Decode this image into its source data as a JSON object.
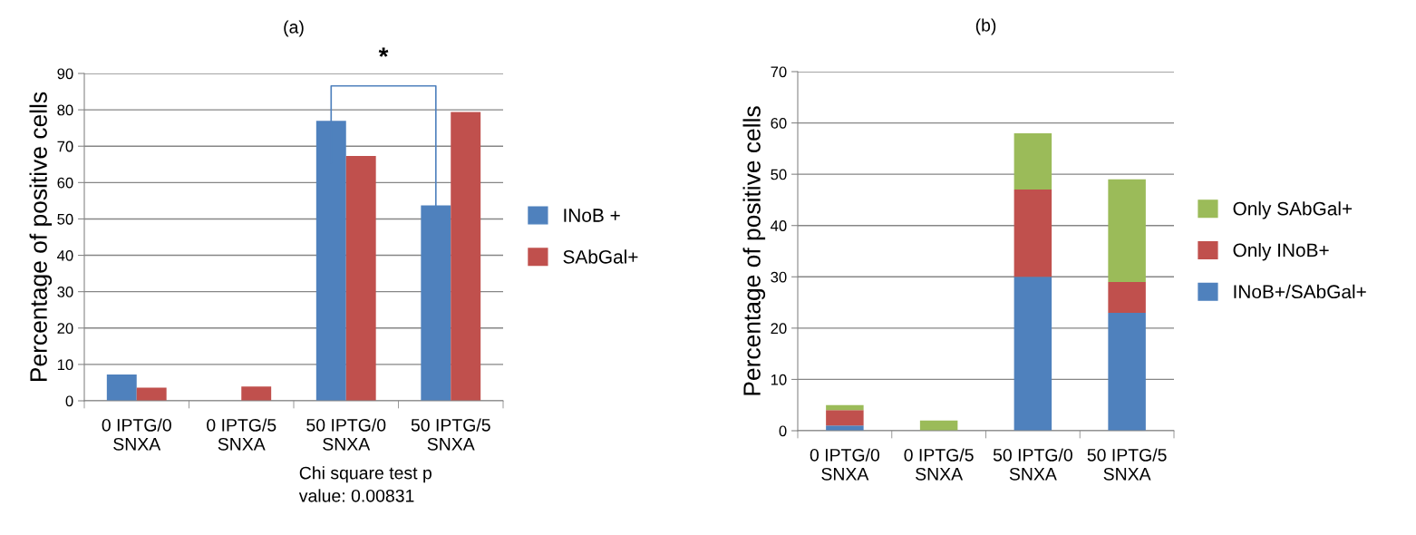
{
  "chart_data": [
    {
      "type": "bar",
      "title": "(a)",
      "ylabel": "Percentage of positive cells",
      "categories": [
        "0 IPTG/0\nSNXA",
        "0 IPTG/5\nSNXA",
        "50 IPTG/0\nSNXA",
        "50 IPTG/5\nSNXA"
      ],
      "series": [
        {
          "name": "INoB +",
          "color": "#4f81bd",
          "values": [
            7.2,
            0,
            77,
            53.7
          ]
        },
        {
          "name": "SAbGal+",
          "color": "#c0504d",
          "values": [
            3.6,
            3.9,
            67.3,
            79.4
          ]
        }
      ],
      "ylim": [
        0,
        90
      ],
      "yticks": [
        0,
        10,
        20,
        30,
        40,
        50,
        60,
        70,
        80,
        90
      ],
      "grid": "y",
      "legend": "right",
      "annotations": [
        "*",
        "Chi square test p\nvalue: 0.00831"
      ]
    },
    {
      "type": "bar",
      "title": "(b)",
      "ylabel": "Percentage of positive cells",
      "stacked": true,
      "categories": [
        "0 IPTG/0\nSNXA",
        "0 IPTG/5\nSNXA",
        "50 IPTG/0\nSNXA",
        "50 IPTG/5\nSNXA"
      ],
      "series": [
        {
          "name": "INoB+/SAbGal+",
          "color": "#4f81bd",
          "values": [
            1,
            0,
            30,
            23
          ]
        },
        {
          "name": "Only INoB+",
          "color": "#c0504d",
          "values": [
            3,
            0,
            17,
            6
          ]
        },
        {
          "name": "Only SAbGal+",
          "color": "#9bbb59",
          "values": [
            1,
            2,
            11,
            20
          ]
        }
      ],
      "ylim": [
        0,
        70
      ],
      "yticks": [
        0,
        10,
        20,
        30,
        40,
        50,
        60,
        70
      ],
      "grid": "y",
      "legend": "right"
    }
  ]
}
